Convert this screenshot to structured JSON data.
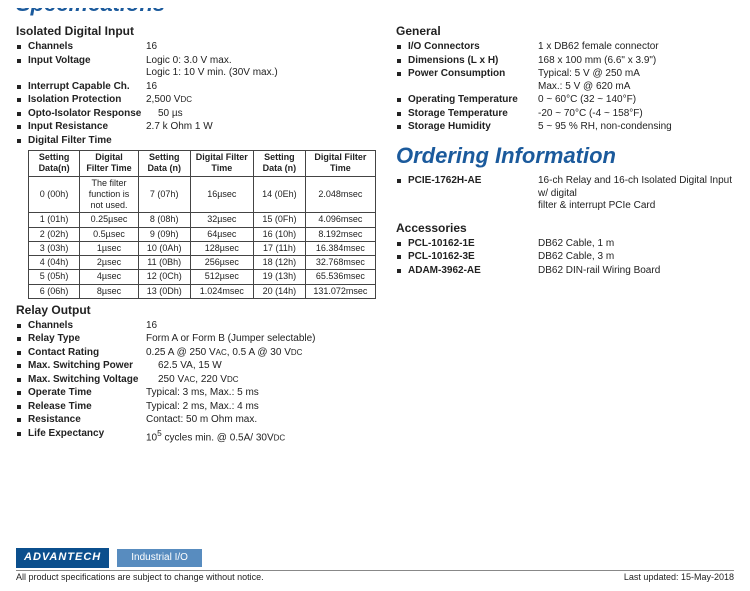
{
  "truncated_heading": "Specifications",
  "left": {
    "idi": {
      "title": "Isolated Digital Input",
      "channels_l": "Channels",
      "channels_v": "16",
      "iv_l": "Input Voltage",
      "iv1": "Logic 0: 3.0 V max.",
      "iv2": "Logic 1: 10 V min. (30V max.)",
      "inter_l": "Interrupt Capable Ch.",
      "inter_v": "16",
      "iso_l": "Isolation Protection",
      "iso_v": "2,500 V",
      "iso_sub": "DC",
      "opto_l": "Opto-Isolator Response",
      "opto_v": "50 µs",
      "ir_l": "Input Resistance",
      "ir_v": "2.7 k Ohm 1 W",
      "dft_l": "Digital Filter Time"
    },
    "table": {
      "h1": "Setting Data(n)",
      "h2": "Digital Filter Time",
      "h3": "Setting Data (n)",
      "h4": "Digital Filter Time",
      "h5": "Setting Data (n)",
      "h6": "Digital Filter Time",
      "r0": [
        "0 (00h)",
        "The filter function is not used.",
        "7 (07h)",
        "16µsec",
        "14 (0Eh)",
        "2.048msec"
      ],
      "rows": [
        [
          "1 (01h)",
          "0.25µsec",
          "8 (08h)",
          "32µsec",
          "15 (0Fh)",
          "4.096msec"
        ],
        [
          "2 (02h)",
          "0.5µsec",
          "9 (09h)",
          "64µsec",
          "16 (10h)",
          "8.192msec"
        ],
        [
          "3 (03h)",
          "1µsec",
          "10 (0Ah)",
          "128µsec",
          "17 (11h)",
          "16.384msec"
        ],
        [
          "4 (04h)",
          "2µsec",
          "11 (0Bh)",
          "256µsec",
          "18 (12h)",
          "32.768msec"
        ],
        [
          "5 (05h)",
          "4µsec",
          "12 (0Ch)",
          "512µsec",
          "19 (13h)",
          "65.536msec"
        ],
        [
          "6 (06h)",
          "8µsec",
          "13 (0Dh)",
          "1.024msec",
          "20 (14h)",
          "131.072msec"
        ]
      ]
    },
    "relay": {
      "title": "Relay Output",
      "ch_l": "Channels",
      "ch_v": "16",
      "rt_l": "Relay Type",
      "rt_v": "Form A or Form B (Jumper selectable)",
      "cr_l": "Contact Rating",
      "cr_v": "0.25 A @ 250 V",
      "cr_s1": "AC",
      "cr_v2": ", 0.5 A @ 30 V",
      "cr_s2": "DC",
      "msp_l": "Max. Switching Power",
      "msp_v": "62.5 VA, 15 W",
      "msv_l": "Max. Switching Voltage",
      "msv_v1": "250 V",
      "msv_s1": "AC",
      "msv_v2": ", 220 V",
      "msv_s2": "DC",
      "ot_l": "Operate Time",
      "ot_v": "Typical: 3 ms, Max.: 5 ms",
      "rel_l": "Release Time",
      "rel_v": "Typical: 2 ms, Max.: 4 ms",
      "res_l": "Resistance",
      "res_v": "Contact: 50 m Ohm max.",
      "le_l": "Life Expectancy",
      "le_v1": "10",
      "le_sup": "5",
      "le_v2": " cycles min. @ 0.5A/ 30V",
      "le_sub": "DC"
    }
  },
  "right": {
    "general": {
      "title": "General",
      "ioc_l": "I/O Connectors",
      "ioc_v": "1 x DB62 female connector",
      "dim_l": "Dimensions (L x H)",
      "dim_v": "168 x 100 mm (6.6\" x 3.9\")",
      "pc_l": "Power Consumption",
      "pc1": "Typical: 5 V @ 250 mA",
      "pc2": "Max.: 5 V @ 620 mA",
      "ot_l": "Operating Temperature",
      "ot_v": "0 ~ 60°C (32 ~ 140°F)",
      "st_l": "Storage Temperature",
      "st_v": "-20 ~ 70°C (-4 ~ 158°F)",
      "sh_l": "Storage Humidity",
      "sh_v": "5 ~ 95 % RH, non-condensing"
    },
    "ordering": {
      "title": "Ordering Information",
      "p_l": "PCIE-1762H-AE",
      "p1": "16-ch Relay and 16-ch Isolated Digital Input w/ digital",
      "p2": "filter & interrupt PCIe Card"
    },
    "acc": {
      "title": "Accessories",
      "a1_l": "PCL-10162-1E",
      "a1_v": "DB62 Cable, 1 m",
      "a2_l": "PCL-10162-3E",
      "a2_v": "DB62 Cable, 3 m",
      "a3_l": "ADAM-3962-AE",
      "a3_v": "DB62 DIN-rail Wiring Board"
    }
  },
  "footer": {
    "brand": "ADVANTECH",
    "cat": "Industrial I/O",
    "note": "All product specifications are subject to change without notice.",
    "date": "Last updated: 15-May-2018"
  }
}
